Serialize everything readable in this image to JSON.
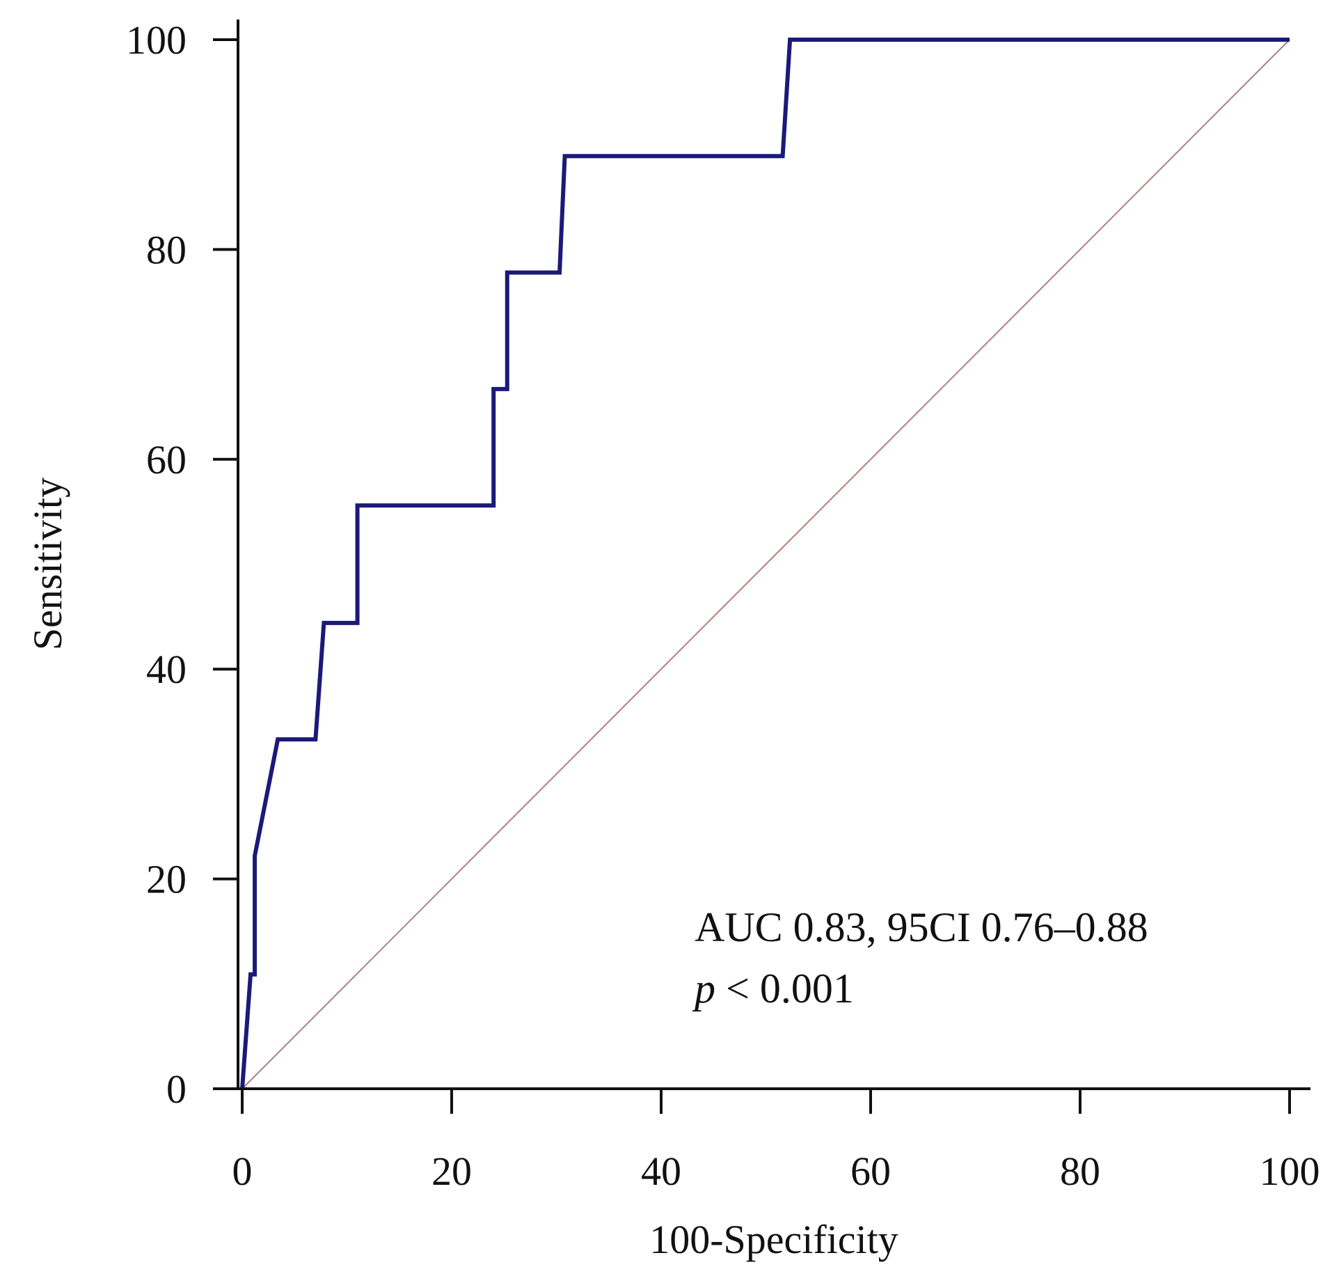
{
  "chart_data": {
    "type": "line",
    "title": "",
    "xlabel": "100-Specificity",
    "ylabel": "Sensitivity",
    "xlim": [
      0,
      100
    ],
    "ylim": [
      0,
      100
    ],
    "x_ticks": [
      0,
      20,
      40,
      60,
      80,
      100
    ],
    "y_ticks": [
      0,
      20,
      40,
      60,
      80,
      100
    ],
    "grid": false,
    "legend": "none",
    "series": [
      {
        "name": "ROC curve",
        "color": "#1a1a7a",
        "x": [
          0,
          0.8,
          1.2,
          1.2,
          3.4,
          7.0,
          7.8,
          11.0,
          11.0,
          24.0,
          24.0,
          25.3,
          25.3,
          30.3,
          30.8,
          51.6,
          52.3,
          100
        ],
        "y": [
          0,
          10.9,
          10.9,
          22.2,
          33.3,
          33.3,
          44.4,
          44.4,
          55.6,
          55.6,
          66.7,
          66.7,
          77.8,
          77.8,
          88.9,
          88.9,
          100,
          100
        ]
      },
      {
        "name": "Reference line",
        "color": "#b08080",
        "x": [
          0,
          100
        ],
        "y": [
          0,
          100
        ]
      }
    ],
    "annotations": {
      "line1": "AUC 0.83, 95CI 0.76–0.88",
      "line2_italic": "p",
      "line2_rest": " < 0.001"
    }
  }
}
